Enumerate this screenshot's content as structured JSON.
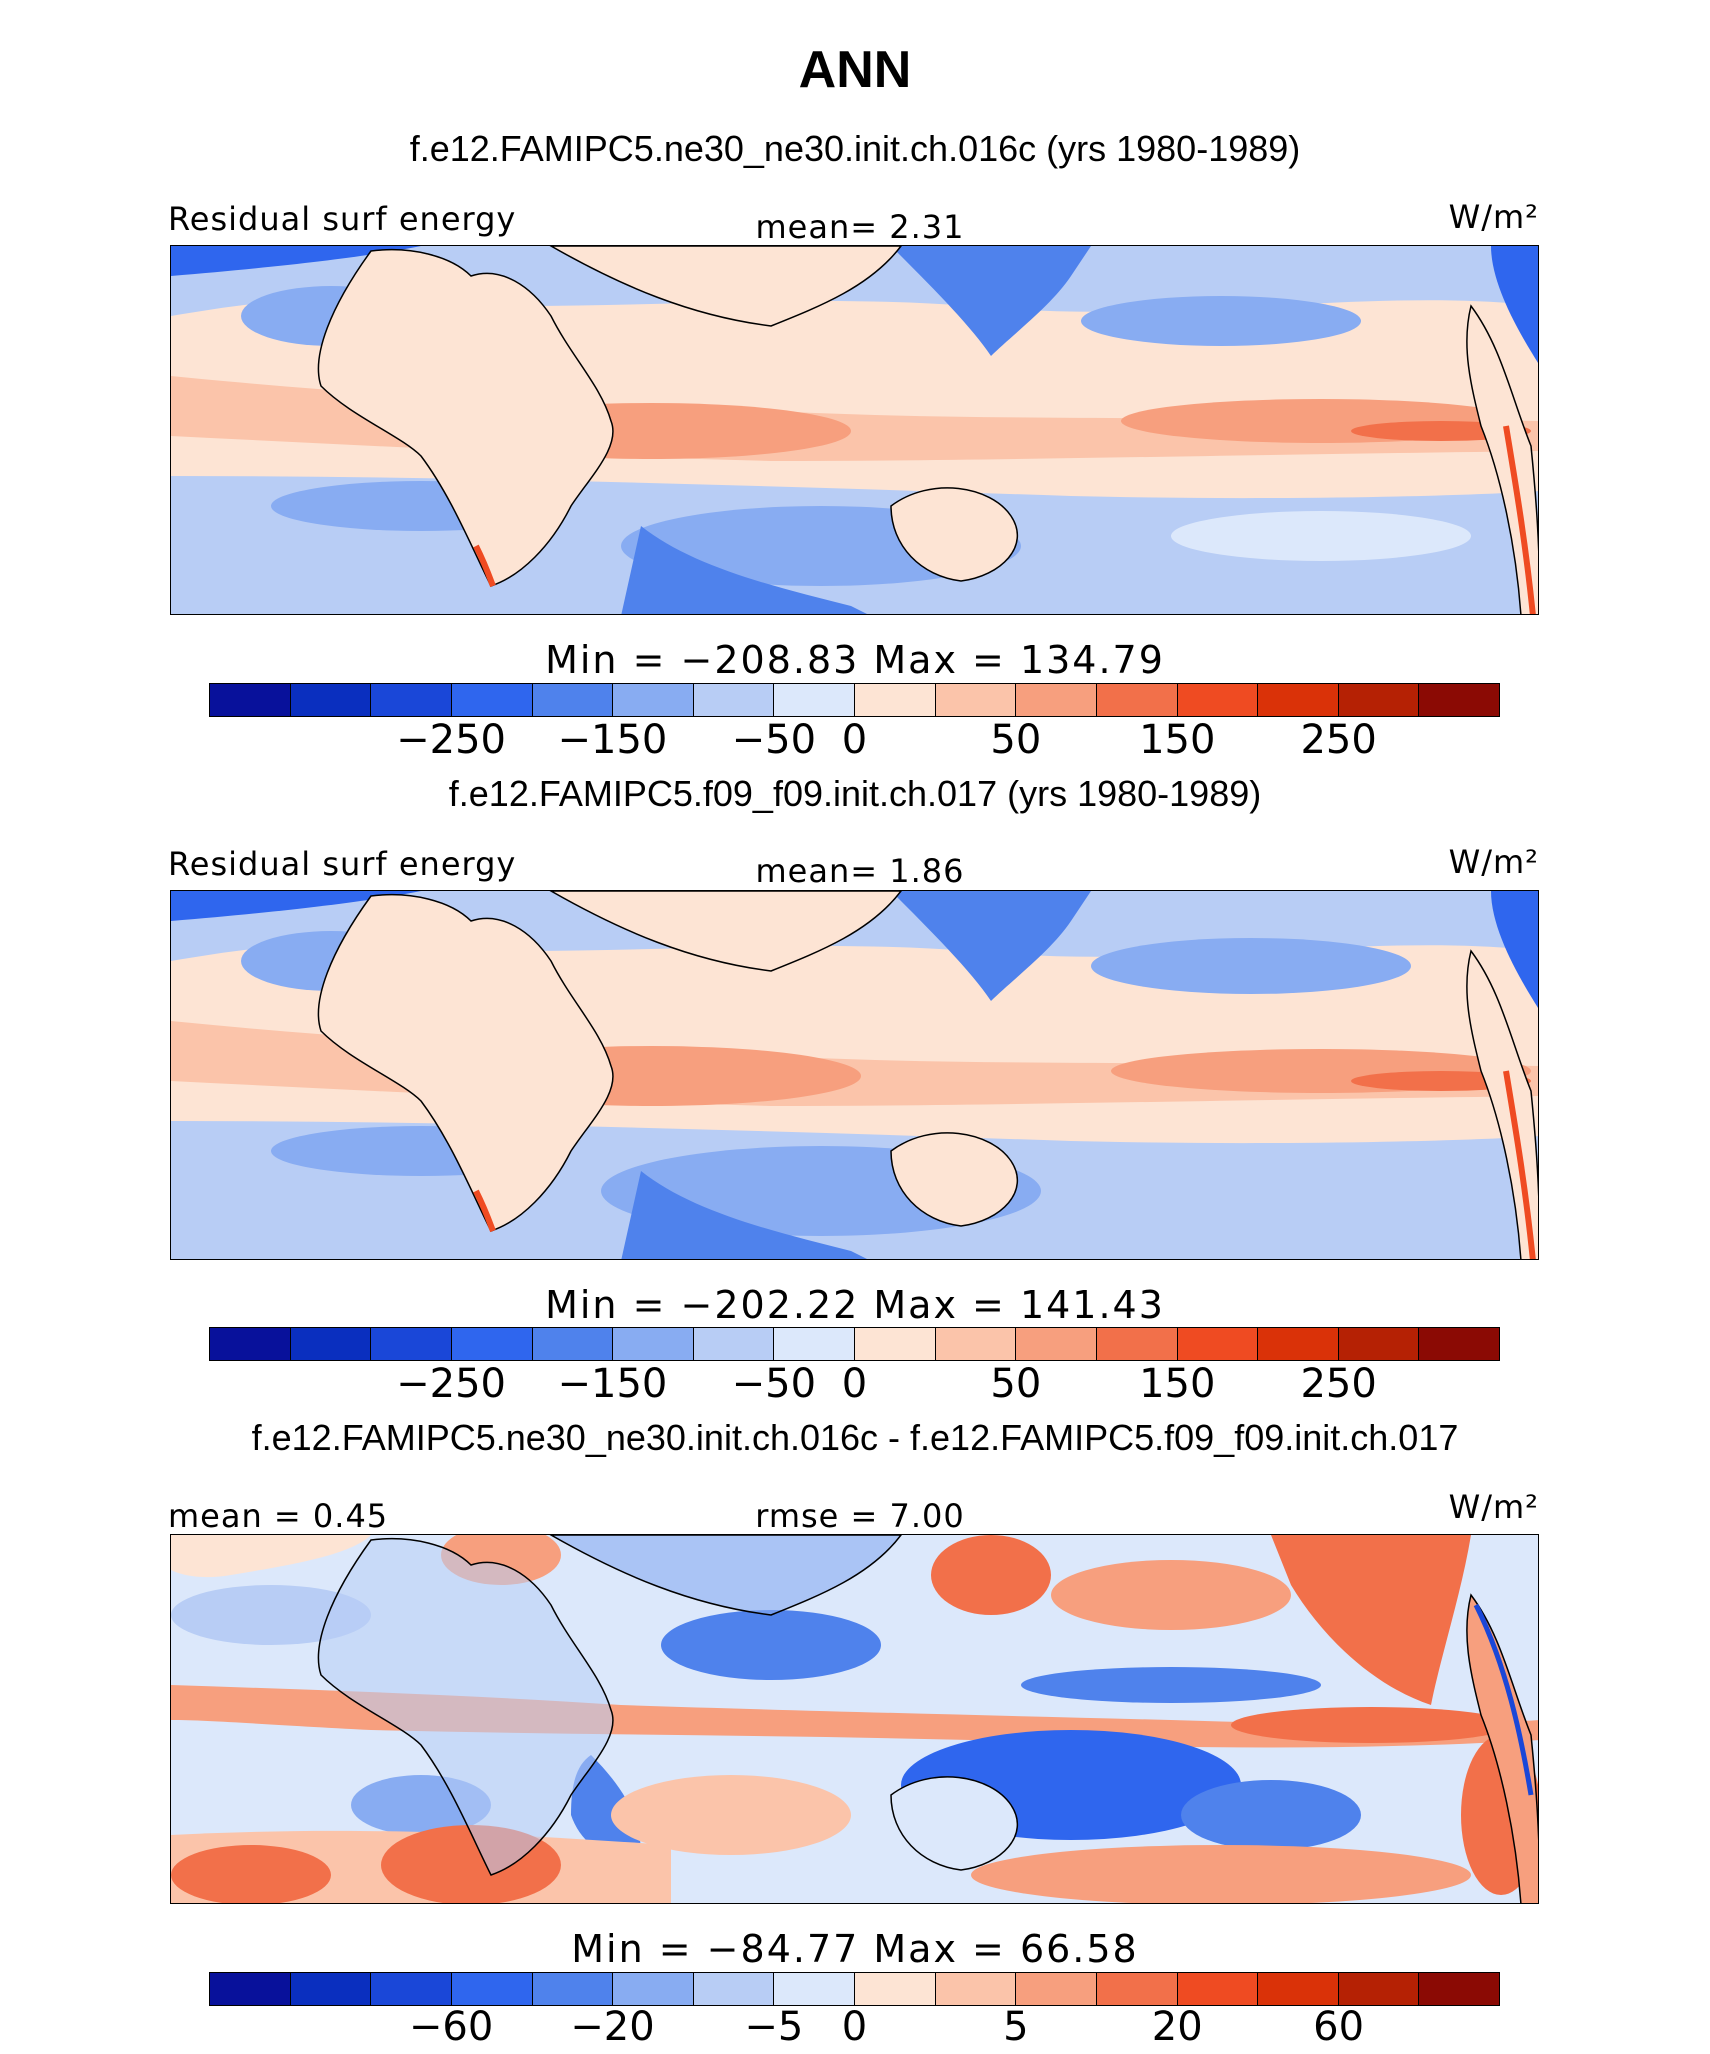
{
  "title": "ANN",
  "colors": [
    "#08119b",
    "#0a2fbf",
    "#1a47d8",
    "#2f66ee",
    "#4f82ec",
    "#88acf2",
    "#b8cdf5",
    "#dce8fb",
    "#fde4d4",
    "#fbc4aa",
    "#f79f7e",
    "#f2704a",
    "#ef4b22",
    "#da3208",
    "#b52104",
    "#8b0a04"
  ],
  "panels": [
    {
      "case_title": "f.e12.FAMIPC5.ne30_ne30.init.ch.016c (yrs 1980-1989)",
      "left_label": "Residual surf energy",
      "center_label": "mean=   2.31",
      "units": "W/m²",
      "stats": "Min  =  −208.83  Max  =  134.79",
      "tick_labels": [
        "−250",
        "−150",
        "−50",
        "0",
        "50",
        "150",
        "250"
      ],
      "mean": 2.31,
      "min": -208.83,
      "max": 134.79
    },
    {
      "case_title": "f.e12.FAMIPC5.f09_f09.init.ch.017 (yrs 1980-1989)",
      "left_label": "Residual surf energy",
      "center_label": "mean=   1.86",
      "units": "W/m²",
      "stats": "Min  =  −202.22  Max  =  141.43",
      "tick_labels": [
        "−250",
        "−150",
        "−50",
        "0",
        "50",
        "150",
        "250"
      ],
      "mean": 1.86,
      "min": -202.22,
      "max": 141.43
    },
    {
      "case_title": "f.e12.FAMIPC5.ne30_ne30.init.ch.016c - f.e12.FAMIPC5.f09_f09.init.ch.017",
      "left_label": "mean =   0.45",
      "center_label": "rmse =   7.00",
      "units": "W/m²",
      "stats": "Min  =  −84.77  Max  =   66.58",
      "tick_labels": [
        "−60",
        "−20",
        "−5",
        "0",
        "5",
        "20",
        "60"
      ],
      "mean": 0.45,
      "rmse": 7.0,
      "min": -84.77,
      "max": 66.58
    }
  ]
}
